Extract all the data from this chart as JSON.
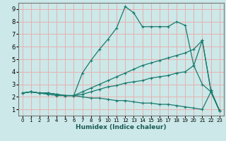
{
  "xlabel": "Humidex (Indice chaleur)",
  "background_color": "#cce8e8",
  "line_color": "#1a7a6e",
  "grid_color": "#e8b0b0",
  "xlim": [
    -0.5,
    23.5
  ],
  "ylim": [
    0.5,
    9.5
  ],
  "xticks": [
    0,
    1,
    2,
    3,
    4,
    5,
    6,
    7,
    8,
    9,
    10,
    11,
    12,
    13,
    14,
    15,
    16,
    17,
    18,
    19,
    20,
    21,
    22,
    23
  ],
  "yticks": [
    1,
    2,
    3,
    4,
    5,
    6,
    7,
    8,
    9
  ],
  "lines": [
    {
      "x": [
        0,
        1,
        2,
        3,
        4,
        5,
        6,
        7,
        8,
        9,
        10,
        11,
        12,
        13,
        14,
        15,
        16,
        17,
        18,
        19,
        20,
        21,
        22,
        23
      ],
      "y": [
        2.3,
        2.4,
        2.3,
        2.3,
        2.2,
        2.1,
        2.1,
        3.9,
        4.9,
        5.8,
        6.6,
        7.5,
        9.2,
        8.7,
        7.6,
        7.6,
        7.6,
        7.6,
        8.0,
        7.7,
        4.5,
        6.5,
        2.5,
        0.9
      ]
    },
    {
      "x": [
        0,
        1,
        2,
        3,
        4,
        5,
        6,
        7,
        8,
        9,
        10,
        11,
        12,
        13,
        14,
        15,
        16,
        17,
        18,
        19,
        20,
        21,
        22,
        23
      ],
      "y": [
        2.3,
        2.4,
        2.3,
        2.3,
        2.2,
        2.1,
        2.1,
        2.4,
        2.7,
        3.0,
        3.3,
        3.6,
        3.9,
        4.2,
        4.5,
        4.7,
        4.9,
        5.1,
        5.3,
        5.5,
        5.8,
        6.5,
        2.5,
        0.9
      ]
    },
    {
      "x": [
        0,
        1,
        2,
        3,
        4,
        5,
        6,
        7,
        8,
        9,
        10,
        11,
        12,
        13,
        14,
        15,
        16,
        17,
        18,
        19,
        20,
        21,
        22,
        23
      ],
      "y": [
        2.3,
        2.4,
        2.3,
        2.3,
        2.2,
        2.1,
        2.1,
        2.2,
        2.4,
        2.6,
        2.8,
        2.9,
        3.1,
        3.2,
        3.3,
        3.5,
        3.6,
        3.7,
        3.9,
        4.0,
        4.5,
        3.0,
        2.4,
        0.9
      ]
    },
    {
      "x": [
        0,
        1,
        2,
        3,
        4,
        5,
        6,
        7,
        8,
        9,
        10,
        11,
        12,
        13,
        14,
        15,
        16,
        17,
        18,
        19,
        20,
        21,
        22,
        23
      ],
      "y": [
        2.3,
        2.4,
        2.3,
        2.2,
        2.1,
        2.1,
        2.1,
        2.0,
        1.9,
        1.9,
        1.8,
        1.7,
        1.7,
        1.6,
        1.5,
        1.5,
        1.4,
        1.4,
        1.3,
        1.2,
        1.1,
        1.0,
        2.4,
        0.9
      ]
    }
  ]
}
